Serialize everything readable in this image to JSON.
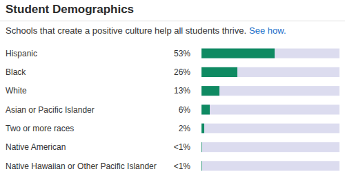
{
  "chart_data": {
    "type": "bar",
    "orientation": "horizontal",
    "title": "Student Demographics",
    "subtitle": "Schools that create a positive culture help all students thrive.",
    "annotations": [
      "See how."
    ],
    "categories": [
      "Hispanic",
      "Black",
      "White",
      "Asian or Pacific Islander",
      "Two or more races",
      "Native American",
      "Native Hawaiian or Other Pacific Islander"
    ],
    "values": [
      53,
      26,
      13,
      6,
      2,
      0.4,
      0.4
    ],
    "value_labels": [
      "53%",
      "26%",
      "13%",
      "6%",
      "2%",
      "<1%",
      "<1%"
    ],
    "data_labels": true,
    "color": "#0f8a62",
    "xlim": [
      0,
      100
    ],
    "tick_labels": false,
    "grid": false
  }
}
